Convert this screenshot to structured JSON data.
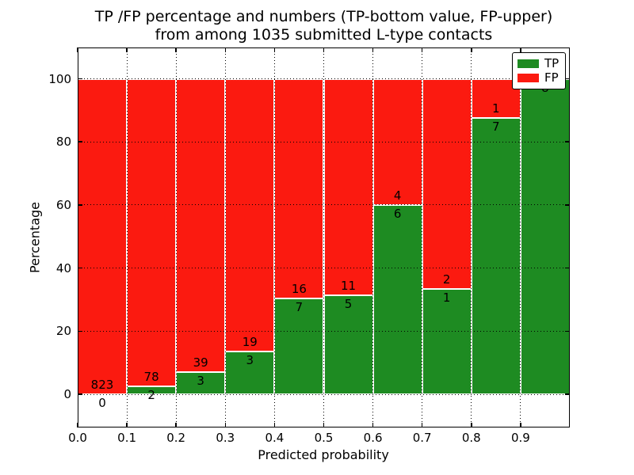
{
  "title": {
    "line1": "TP /FP percentage and numbers (TP-bottom value, FP-upper)",
    "line2": "from among 1035 submitted L-type contacts"
  },
  "axes": {
    "xlabel": "Predicted probability",
    "ylabel": "Percentage",
    "xtick_labels": [
      "0.0",
      "0.1",
      "0.2",
      "0.3",
      "0.4",
      "0.5",
      "0.6",
      "0.7",
      "0.8",
      "0.9"
    ],
    "ytick_values": [
      0,
      20,
      40,
      60,
      80,
      100
    ]
  },
  "legend": {
    "items": [
      {
        "label": "TP",
        "color": "#1e8b22"
      },
      {
        "label": "FP",
        "color": "#fb1a10"
      }
    ]
  },
  "chart_data": {
    "type": "bar",
    "stacked": true,
    "normalized": "each 0.1 probability bin scaled to 100%",
    "title": "TP /FP percentage and numbers (TP-bottom value, FP-upper) from among 1035 submitted L-type contacts",
    "xlabel": "Predicted probability",
    "ylabel": "Percentage",
    "total_contacts": 1035,
    "bins": [
      "0.0-0.1",
      "0.1-0.2",
      "0.2-0.3",
      "0.3-0.4",
      "0.4-0.5",
      "0.5-0.6",
      "0.6-0.7",
      "0.7-0.8",
      "0.8-0.9",
      "0.9-1.0"
    ],
    "series": [
      {
        "name": "TP",
        "color": "#1e8b22",
        "counts": [
          0,
          2,
          3,
          3,
          7,
          5,
          6,
          1,
          7,
          8
        ]
      },
      {
        "name": "FP",
        "color": "#fb1a10",
        "counts": [
          823,
          78,
          39,
          19,
          16,
          11,
          4,
          2,
          1,
          0
        ]
      }
    ],
    "tp_percent_of_bin": [
      0,
      2.5,
      7.1,
      13.6,
      30.4,
      31.3,
      60.0,
      33.3,
      87.5,
      100.0
    ],
    "xlim": [
      0.0,
      1.0
    ],
    "ylim_percent": [
      0,
      100
    ],
    "grid": "dotted",
    "legend_position": "upper right"
  }
}
